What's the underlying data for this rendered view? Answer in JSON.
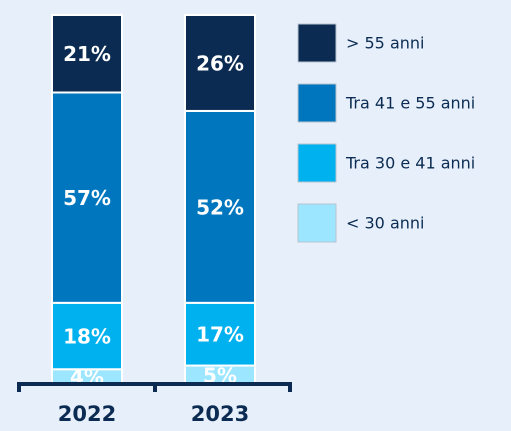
{
  "chart_data": {
    "type": "stacked_bar",
    "categories": [
      "2022",
      "2023"
    ],
    "series": [
      {
        "name": "> 55 anni",
        "color": "#0b2b52",
        "values": [
          21,
          26
        ],
        "value_labels": [
          "21%",
          "26%"
        ]
      },
      {
        "name": "Tra 41 e 55 anni",
        "color": "#0076bf",
        "values": [
          57,
          52
        ],
        "value_labels": [
          "57%",
          "52%"
        ]
      },
      {
        "name": "Tra 30 e 41 anni",
        "color": "#00b1ef",
        "values": [
          18,
          17
        ],
        "value_labels": [
          "18%",
          "17%"
        ]
      },
      {
        "name": "< 30 anni",
        "color": "#9ce6ff",
        "values": [
          4,
          5
        ],
        "value_labels": [
          "4%",
          "5%"
        ]
      }
    ],
    "ylim": [
      0,
      100
    ]
  }
}
